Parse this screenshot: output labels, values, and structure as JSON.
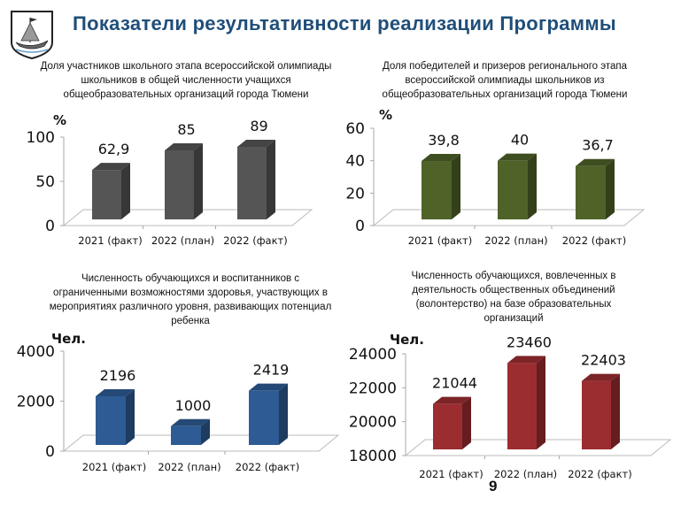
{
  "header": {
    "title": "Показатели результативности реализации Программы",
    "logo": "Тюмень coat of arms (ship)"
  },
  "page_number": "9",
  "chart_data": [
    {
      "type": "bar",
      "title": "Доля участников школьного этапа всероссийской олимпиады школьников в общей численности учащихся общеобразовательных организаций города Тюмени",
      "title_lines": [
        "Доля участников школьного этапа всероссийской олимпиады",
        "школьников в общей численности учащихся",
        "общеобразовательных организаций города Тюмени"
      ],
      "ylabel": "%",
      "categories": [
        "2021 (факт)",
        "2022 (план)",
        "2022 (факт)"
      ],
      "values": [
        62.9,
        85,
        89
      ],
      "value_labels": [
        "62,9",
        "85",
        "89"
      ],
      "ylim": [
        0,
        100
      ],
      "yticks": [
        0,
        50,
        100
      ],
      "color": "#555555",
      "grid": false
    },
    {
      "type": "bar",
      "title": "Доля победителей и призеров регионального этапа всероссийской олимпиады школьников из общеобразовательных организаций города Тюмени",
      "title_lines": [
        "Доля победителей и призеров регионального этапа",
        "всероссийской олимпиады школьников из",
        "общеобразовательных организаций города Тюмени"
      ],
      "ylabel": "%",
      "categories": [
        "2021 (факт)",
        "2022 (план)",
        "2022 (факт)"
      ],
      "values": [
        39.8,
        40,
        36.7
      ],
      "value_labels": [
        "39,8",
        "40",
        "36,7"
      ],
      "ylim": [
        0,
        60
      ],
      "yticks": [
        0,
        20,
        40,
        60
      ],
      "color": "#4f6228",
      "grid": false
    },
    {
      "type": "bar",
      "title": "Численность обучающихся и воспитанников с ограниченными возможностями здоровья, участвующих в мероприятиях различного уровня, развивающих потенциал ребенка",
      "title_lines": [
        "Численность обучающихся и воспитанников с",
        "ограниченными возможностями здоровья, участвующих в",
        "мероприятиях различного уровня, развивающих потенциал",
        "ребенка"
      ],
      "ylabel": "Чел.",
      "categories": [
        "2021 (факт)",
        "2022 (план)",
        "2022 (факт)"
      ],
      "values": [
        2196,
        1000,
        2419
      ],
      "value_labels": [
        "2196",
        "1000",
        "2419"
      ],
      "ylim": [
        0,
        4000
      ],
      "yticks": [
        0,
        2000,
        4000
      ],
      "color": "#2e5b94",
      "grid": false
    },
    {
      "type": "bar",
      "title": "Численность обучающихся, вовлеченных в деятельность общественных объединений (волонтерство) на базе образовательных организаций",
      "title_lines": [
        "Численность обучающихся, вовлеченных в",
        "деятельность общественных объединений",
        "(волонтерство) на базе образовательных",
        "организаций"
      ],
      "ylabel": "Чел.",
      "categories": [
        "2021 (факт)",
        "2022 (план)",
        "2022 (факт)"
      ],
      "values": [
        21044,
        23460,
        22403
      ],
      "value_labels": [
        "21044",
        "23460",
        "22403"
      ],
      "ylim": [
        18000,
        24000
      ],
      "yticks": [
        18000,
        20000,
        22000,
        24000
      ],
      "color": "#9b2d30",
      "grid": false
    }
  ]
}
